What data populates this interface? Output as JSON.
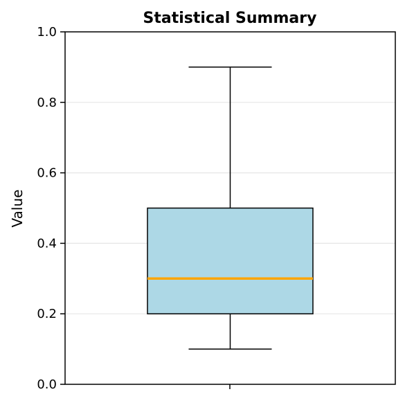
{
  "chart_data": {
    "type": "box",
    "title": "Statistical Summary",
    "xlabel": "",
    "ylabel": "Value",
    "ylim": [
      0.0,
      1.0
    ],
    "yticks": [
      0.0,
      0.2,
      0.4,
      0.6,
      0.8,
      1.0
    ],
    "ytick_labels": [
      "0.0",
      "0.2",
      "0.4",
      "0.6",
      "0.8",
      "1.0"
    ],
    "grid": "y",
    "legend": "none",
    "boxes": [
      {
        "whisker_low": 0.1,
        "q1": 0.2,
        "median": 0.3,
        "q3": 0.5,
        "whisker_high": 0.9
      }
    ],
    "colors": {
      "box_fill": "#add8e6",
      "box_edge": "#000000",
      "median": "#ffa500",
      "grid": "#e6e6e6"
    }
  }
}
